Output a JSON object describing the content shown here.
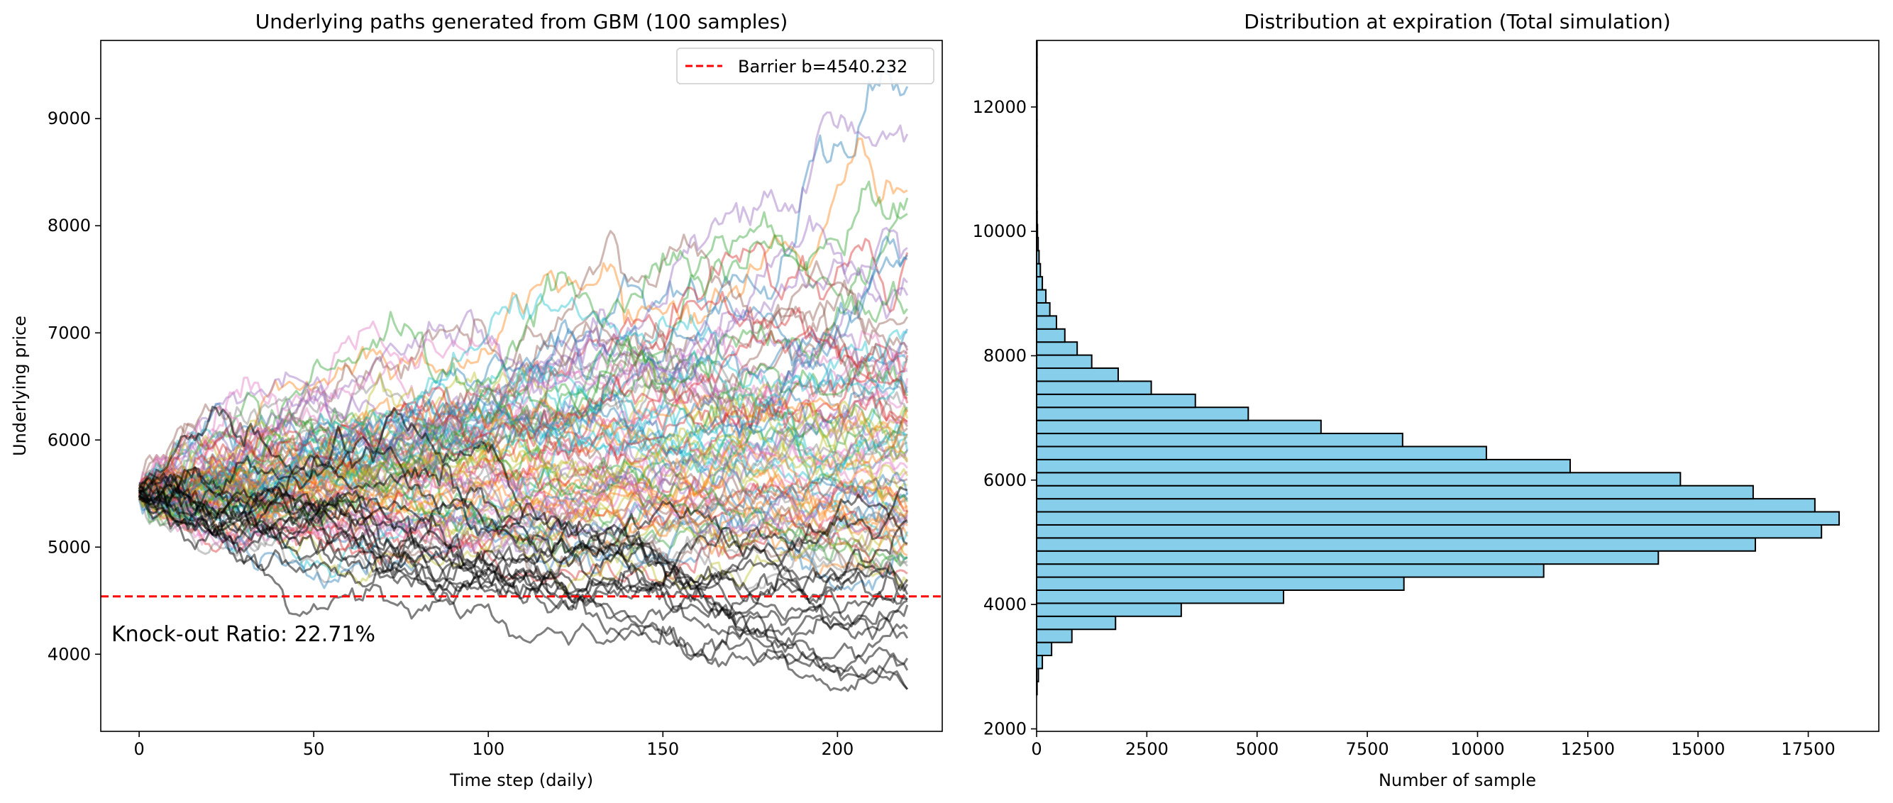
{
  "chart_data": [
    {
      "type": "line",
      "title": "Underlying paths generated from GBM (100 samples)",
      "xlabel": "Time step (daily)",
      "ylabel": "Underlying price",
      "xlim": [
        -11,
        230
      ],
      "ylim": [
        3280,
        9730
      ],
      "xticks": [
        0,
        50,
        100,
        150,
        200
      ],
      "yticks": [
        4000,
        5000,
        6000,
        7000,
        8000,
        9000
      ],
      "n_paths": 100,
      "n_steps": 220,
      "start_price": 5520,
      "barrier": {
        "value": 4540.232,
        "label": "Barrier b=4540.232",
        "color": "#ff0000",
        "style": "dashed"
      },
      "annotation": "Knock-out Ratio: 22.71%",
      "knocked_out_color": "#000000",
      "palette": [
        "#1f77b4",
        "#ff7f0e",
        "#2ca02c",
        "#d62728",
        "#9467bd",
        "#8c564b",
        "#e377c2",
        "#7f7f7f",
        "#bcbd22",
        "#17becf"
      ],
      "legend": "top-right",
      "grid": false,
      "example_endpoints": [
        9300,
        8330,
        8260,
        7750,
        7350,
        7150,
        6850,
        6500,
        6200,
        5900,
        5500,
        5100,
        4900,
        4500,
        4150,
        3850
      ]
    },
    {
      "type": "bar",
      "orientation": "horizontal",
      "title": "Distribution at expiration (Total simulation)",
      "xlabel": "Number of sample",
      "ylabel": "",
      "xlim": [
        0,
        19100
      ],
      "ylim": [
        1960,
        13070
      ],
      "xticks": [
        0,
        2500,
        5000,
        7500,
        10000,
        12500,
        15000,
        17500
      ],
      "yticks": [
        2000,
        4000,
        6000,
        8000,
        10000,
        12000
      ],
      "bin_width": 210,
      "bar_color": "#87ceeb",
      "edge_color": "#000000",
      "bin_starts": [
        2550,
        2760,
        2970,
        3180,
        3390,
        3600,
        3810,
        4020,
        4230,
        4440,
        4650,
        4860,
        5070,
        5280,
        5490,
        5700,
        5910,
        6120,
        6330,
        6540,
        6750,
        6960,
        7170,
        7380,
        7590,
        7800,
        8010,
        8220,
        8430,
        8640,
        8850,
        9060,
        9270,
        9480,
        9690,
        9900,
        10110,
        10320,
        10530,
        10740,
        10950,
        11160,
        11370,
        11580,
        11790,
        12000,
        12210,
        12420,
        12630,
        12840
      ],
      "counts": [
        10,
        40,
        130,
        340,
        800,
        1790,
        3280,
        5600,
        8330,
        11500,
        14100,
        16300,
        17800,
        18200,
        17650,
        16250,
        14600,
        12100,
        10200,
        8300,
        6450,
        4800,
        3600,
        2600,
        1850,
        1250,
        920,
        640,
        450,
        300,
        210,
        130,
        85,
        55,
        35,
        20,
        12,
        8,
        5,
        3,
        2,
        1,
        1,
        1,
        1,
        1,
        1,
        1,
        1,
        1
      ]
    }
  ]
}
